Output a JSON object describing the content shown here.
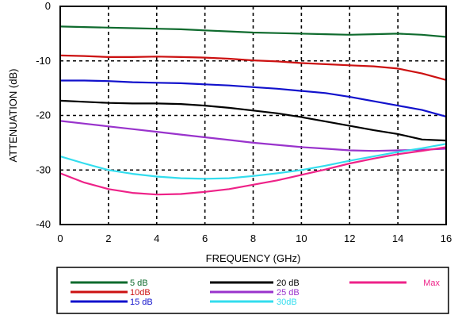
{
  "chart_data": {
    "type": "line",
    "title": "",
    "xlabel": "FREQUENCY (GHz)",
    "ylabel": "ATTENUATION  (dB)",
    "xlim": [
      0,
      16
    ],
    "ylim": [
      -40,
      0
    ],
    "xticks": [
      0,
      2,
      4,
      6,
      8,
      10,
      12,
      14,
      16
    ],
    "yticks": [
      0,
      -10,
      -20,
      -30,
      -40
    ],
    "xtick_labels": [
      "0",
      "2",
      "4",
      "6",
      "8",
      "10",
      "12",
      "14",
      "16"
    ],
    "ytick_labels": [
      "0",
      "-10",
      "-20",
      "-30",
      "-40"
    ],
    "grid": "dashed",
    "legend_position": "bottom",
    "series": [
      {
        "name": "5 dB",
        "color": "#0f6b2e",
        "x": [
          0,
          1,
          2,
          3,
          4,
          5,
          6,
          7,
          8,
          9,
          10,
          11,
          12,
          13,
          14,
          15,
          16
        ],
        "y": [
          -3.7,
          -3.8,
          -3.9,
          -4.0,
          -4.1,
          -4.2,
          -4.4,
          -4.6,
          -4.8,
          -4.9,
          -5.0,
          -5.1,
          -5.2,
          -5.1,
          -5.0,
          -5.2,
          -5.6
        ]
      },
      {
        "name": "10dB",
        "color": "#cc1111",
        "x": [
          0,
          1,
          2,
          3,
          4,
          5,
          6,
          7,
          8,
          9,
          10,
          11,
          12,
          13,
          14,
          15,
          16
        ],
        "y": [
          -9.0,
          -9.1,
          -9.3,
          -9.3,
          -9.2,
          -9.3,
          -9.4,
          -9.6,
          -9.9,
          -10.1,
          -10.4,
          -10.6,
          -10.8,
          -11.0,
          -11.4,
          -12.3,
          -13.5
        ]
      },
      {
        "name": "15 dB",
        "color": "#1111cc",
        "x": [
          0,
          1,
          2,
          3,
          4,
          5,
          6,
          7,
          8,
          9,
          10,
          11,
          12,
          13,
          14,
          15,
          16
        ],
        "y": [
          -13.6,
          -13.6,
          -13.7,
          -13.9,
          -14.0,
          -14.1,
          -14.3,
          -14.5,
          -14.8,
          -15.1,
          -15.5,
          -15.9,
          -16.6,
          -17.4,
          -18.2,
          -19.0,
          -20.2
        ]
      },
      {
        "name": "20 dB",
        "color": "#000000",
        "x": [
          0,
          1,
          2,
          3,
          4,
          5,
          6,
          7,
          8,
          9,
          10,
          11,
          12,
          13,
          14,
          15,
          16
        ],
        "y": [
          -17.3,
          -17.5,
          -17.7,
          -17.8,
          -17.8,
          -17.9,
          -18.2,
          -18.6,
          -19.1,
          -19.6,
          -20.3,
          -21.1,
          -21.9,
          -22.7,
          -23.4,
          -24.4,
          -24.6
        ]
      },
      {
        "name": "25 dB",
        "color": "#9933cc",
        "x": [
          0,
          1,
          2,
          3,
          4,
          5,
          6,
          7,
          8,
          9,
          10,
          11,
          12,
          13,
          14,
          15,
          16
        ],
        "y": [
          -21.0,
          -21.5,
          -22.0,
          -22.5,
          -23.0,
          -23.5,
          -24.0,
          -24.5,
          -25.0,
          -25.4,
          -25.8,
          -26.1,
          -26.4,
          -26.5,
          -26.4,
          -26.3,
          -26.1
        ]
      },
      {
        "name": "30dB",
        "color": "#33ddee",
        "x": [
          0,
          1,
          2,
          3,
          4,
          5,
          6,
          7,
          8,
          9,
          10,
          11,
          12,
          13,
          14,
          15,
          16
        ],
        "y": [
          -27.5,
          -28.8,
          -30.0,
          -30.7,
          -31.2,
          -31.5,
          -31.6,
          -31.5,
          -31.1,
          -30.6,
          -30.0,
          -29.2,
          -28.3,
          -27.5,
          -26.7,
          -26.0,
          -25.2
        ]
      },
      {
        "name": "Max",
        "color": "#ee2288",
        "x": [
          0,
          1,
          2,
          3,
          4,
          5,
          6,
          7,
          8,
          9,
          10,
          11,
          12,
          13,
          14,
          15,
          16
        ],
        "y": [
          -30.6,
          -32.3,
          -33.5,
          -34.2,
          -34.5,
          -34.4,
          -34.0,
          -33.5,
          -32.7,
          -31.9,
          -30.9,
          -29.9,
          -28.8,
          -27.9,
          -27.1,
          -26.5,
          -25.8
        ]
      }
    ]
  }
}
